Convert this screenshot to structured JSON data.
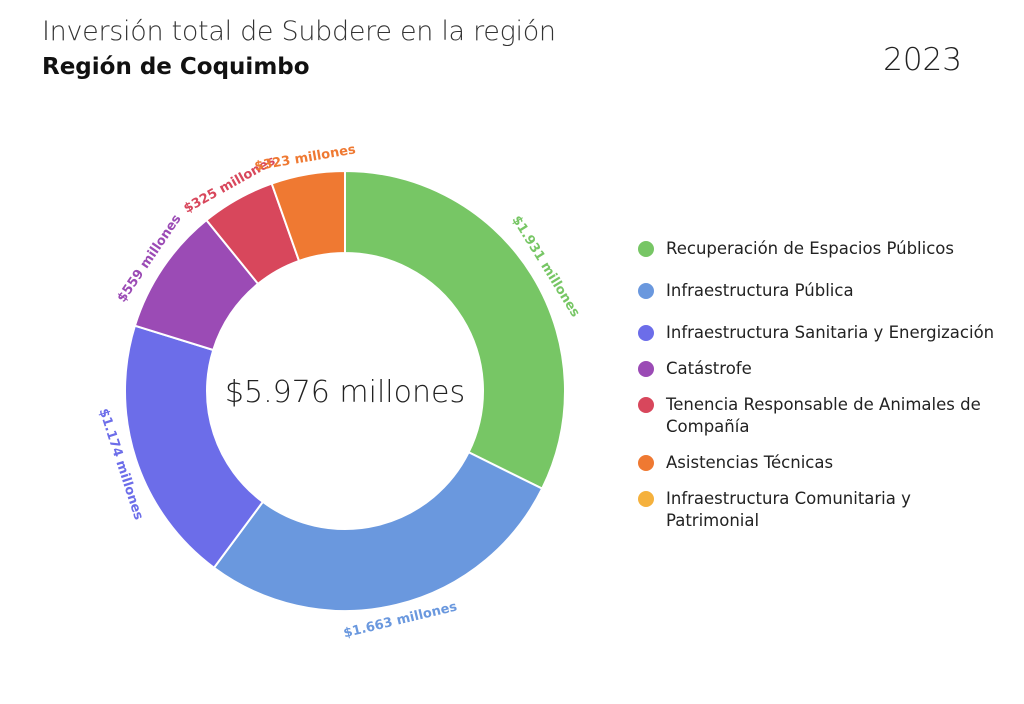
{
  "header": {
    "title": "Inversión total de Subdere en la región",
    "subtitle": "Región de Coquimbo",
    "year": "2023"
  },
  "chart_data": {
    "type": "pie",
    "style": "donut",
    "center_label": "$5.976 millones",
    "total": 5976,
    "slices": [
      {
        "label": "Recuperación de Espacios Públicos",
        "value": 1931,
        "data_label": "$1.931 millones",
        "color": "#77c665"
      },
      {
        "label": "Infraestructura Pública",
        "value": 1663,
        "data_label": "$1.663 millones",
        "color": "#6a98de"
      },
      {
        "label": "Infraestructura Sanitaria y Energización",
        "value": 1174,
        "data_label": "$1.174 millones",
        "color": "#6c6de9"
      },
      {
        "label": "Catástrofe",
        "value": 559,
        "data_label": "$559 millones",
        "color": "#9b4bb5"
      },
      {
        "label": "Tenencia Responsable de Animales de Compañía",
        "value": 325,
        "data_label": "$325 millones",
        "color": "#d8475c"
      },
      {
        "label": "Asistencias Técnicas",
        "value": 323,
        "data_label": "$323 millones",
        "color": "#ef7932"
      },
      {
        "label": "Infraestructura Comunitaria y Patrimonial",
        "value": 0,
        "data_label": "",
        "color": "#f5b13d"
      }
    ],
    "legend_position": "right"
  }
}
